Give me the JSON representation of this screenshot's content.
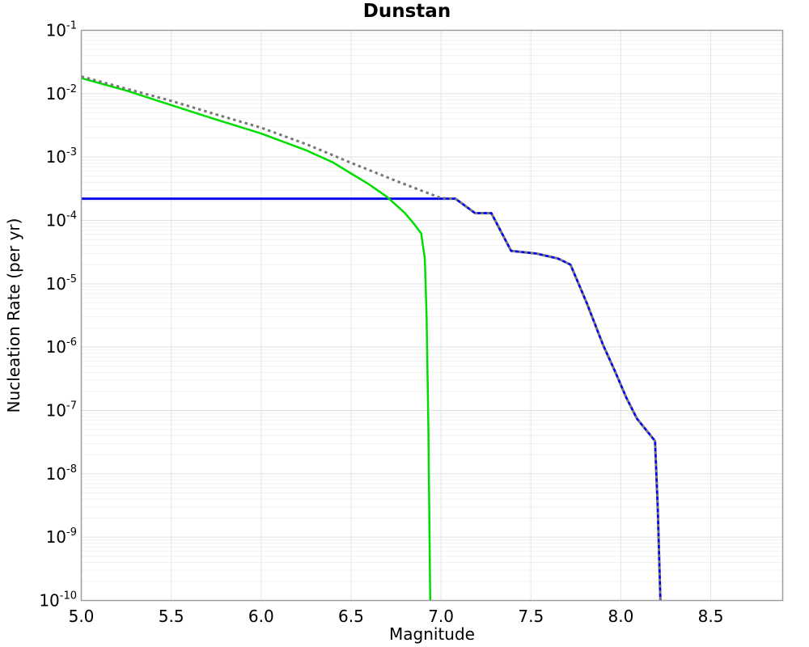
{
  "title": "Dunstan",
  "axes": {
    "x_label": "Magnitude",
    "y_label": "Nucleation Rate (per yr)"
  },
  "chart_data": {
    "type": "line",
    "title": "Dunstan",
    "xlabel": "Magnitude",
    "ylabel": "Nucleation Rate (per yr)",
    "x_range": [
      5.0,
      8.9
    ],
    "y_log10_range": [
      -10,
      -1
    ],
    "x_ticks": [
      {
        "value": 5.0,
        "label": "5.0"
      },
      {
        "value": 5.5,
        "label": "5.5"
      },
      {
        "value": 6.0,
        "label": "6.0"
      },
      {
        "value": 6.5,
        "label": "6.5"
      },
      {
        "value": 7.0,
        "label": "7.0"
      },
      {
        "value": 7.5,
        "label": "7.5"
      },
      {
        "value": 8.0,
        "label": "8.0"
      },
      {
        "value": 8.5,
        "label": "8.5"
      }
    ],
    "y_tick_base": "10",
    "y_tick_exponents": [
      "-1",
      "-2",
      "-3",
      "-4",
      "-5",
      "-6",
      "-7",
      "-8",
      "-9",
      "-10"
    ],
    "grid": {
      "horizontal_major": true,
      "horizontal_log_minor": true,
      "vertical_at_half_magnitude": true
    },
    "legend": "none",
    "series": [
      {
        "name": "blue-solid-line",
        "color": "#0000ee",
        "style": "solid",
        "line_width": 2.8,
        "points": [
          [
            5.0,
            0.00022
          ],
          [
            7.08,
            0.00022
          ],
          [
            7.19,
            0.00013
          ],
          [
            7.28,
            0.00013
          ],
          [
            7.39,
            3.3e-05
          ],
          [
            7.53,
            3e-05
          ],
          [
            7.65,
            2.5e-05
          ],
          [
            7.72,
            2e-05
          ],
          [
            7.81,
            5e-06
          ],
          [
            7.9,
            1.1e-06
          ],
          [
            7.97,
            4e-07
          ],
          [
            8.03,
            1.6e-07
          ],
          [
            8.09,
            7.4e-08
          ],
          [
            8.19,
            3.3e-08
          ],
          [
            8.205,
            3e-09
          ],
          [
            8.22,
            1e-10
          ]
        ]
      },
      {
        "name": "green-solid-line",
        "color": "#00dd00",
        "style": "solid",
        "line_width": 2.5,
        "points": [
          [
            5.0,
            0.0176
          ],
          [
            5.25,
            0.0112
          ],
          [
            5.5,
            0.0066
          ],
          [
            5.75,
            0.0039
          ],
          [
            6.0,
            0.00235
          ],
          [
            6.25,
            0.00128
          ],
          [
            6.4,
            0.00082
          ],
          [
            6.5,
            0.00055
          ],
          [
            6.6,
            0.00037
          ],
          [
            6.7,
            0.000235
          ],
          [
            6.8,
            0.00013
          ],
          [
            6.85,
            8.8e-05
          ],
          [
            6.89,
            6.2e-05
          ],
          [
            6.91,
            2.5e-05
          ],
          [
            6.92,
            3e-06
          ],
          [
            6.93,
            5e-08
          ],
          [
            6.94,
            1e-10
          ]
        ]
      },
      {
        "name": "gray-dotted-line",
        "color": "#787878",
        "style": "dotted",
        "line_width": 3,
        "points": [
          [
            5.0,
            0.0187
          ],
          [
            5.25,
            0.012
          ],
          [
            5.5,
            0.0077
          ],
          [
            5.75,
            0.0047
          ],
          [
            6.0,
            0.0029
          ],
          [
            6.25,
            0.0016
          ],
          [
            6.5,
            0.00081
          ],
          [
            6.75,
            0.00042
          ],
          [
            7.0,
            0.000225
          ],
          [
            7.08,
            0.00022
          ],
          [
            7.19,
            0.00013
          ],
          [
            7.28,
            0.00013
          ],
          [
            7.39,
            3.3e-05
          ],
          [
            7.53,
            3e-05
          ],
          [
            7.65,
            2.5e-05
          ],
          [
            7.72,
            2e-05
          ],
          [
            7.81,
            5e-06
          ],
          [
            7.9,
            1.1e-06
          ],
          [
            7.97,
            4e-07
          ],
          [
            8.03,
            1.6e-07
          ],
          [
            8.09,
            7.4e-08
          ],
          [
            8.19,
            3.3e-08
          ],
          [
            8.205,
            3e-09
          ],
          [
            8.22,
            1e-10
          ]
        ]
      }
    ]
  }
}
